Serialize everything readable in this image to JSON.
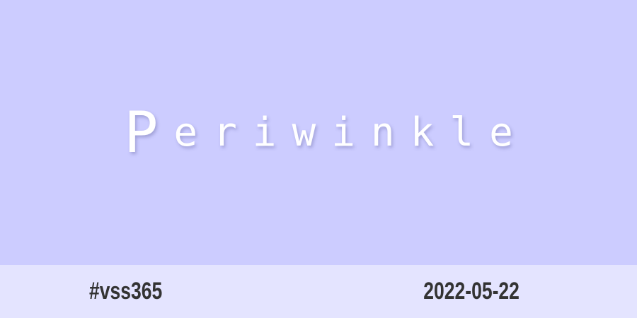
{
  "colors": {
    "main_background": "#ccccff",
    "footer_background": "#e4e4ff",
    "title_text": "#ffffff",
    "footer_text": "#333333"
  },
  "title": {
    "first_letter": "P",
    "rest": "eriwinkle"
  },
  "footer": {
    "hashtag": "#vss365",
    "date": "2022-05-22"
  }
}
